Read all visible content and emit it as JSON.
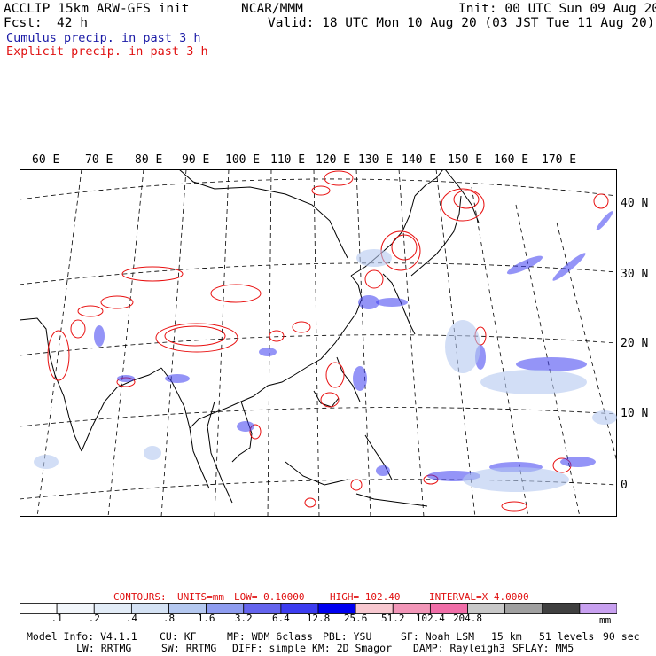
{
  "header": {
    "model": "ACCLIP 15km ARW-GFS init",
    "org": "NCAR/MMM",
    "init": "Init: 00 UTC Sun 09 Aug 20",
    "fcst_label": "Fcst:",
    "fcst_value": "42 h",
    "valid": "Valid: 18 UTC Mon 10 Aug 20 (03 JST Tue 11 Aug 20)",
    "cumulus": "Cumulus precip. in past 3 h",
    "explicit": "Explicit precip. in past 3 h"
  },
  "map": {
    "lon_labels": [
      "60 E",
      "70 E",
      "80 E",
      "90 E",
      "100 E",
      "110 E",
      "120 E",
      "130 E",
      "140 E",
      "150 E",
      "160 E",
      "170 E"
    ],
    "lat_labels": [
      "40 N",
      "30 N",
      "20 N",
      "10 N",
      "0"
    ],
    "colors": {
      "coast": "#000000",
      "grid": "#000000",
      "explicit": "#e81010",
      "cumulus": "#2020e0"
    }
  },
  "contours": {
    "label": "CONTOURS:",
    "units": "UNITS=mm",
    "low": "LOW= 0.10000",
    "high": "HIGH= 102.40",
    "interval": "INTERVAL=X 4.0000"
  },
  "colorbar": {
    "colors": [
      "#ffffff",
      "#f2f6fb",
      "#e2ecf7",
      "#d4e2f4",
      "#b4c8f0",
      "#8e9cf0",
      "#6464ee",
      "#3c3cf0",
      "#0000f0",
      "#f8c8d0",
      "#f296b8",
      "#f06ea8",
      "#c8c8c8",
      "#a0a0a0",
      "#404040",
      "#c8a0f0"
    ],
    "ticks": [
      ".1",
      ".2",
      ".4",
      ".8",
      "1.6",
      "3.2",
      "6.4",
      "12.8",
      "25.6",
      "51.2",
      "102.4",
      "204.8"
    ],
    "unit": "mm"
  },
  "footer": {
    "line1": [
      "Model Info: V4.1.1",
      "CU: KF",
      "MP: WDM 6class",
      "PBL: YSU",
      "SF: Noah LSM",
      "15 km",
      "51 levels",
      "90 sec"
    ],
    "line2": [
      "LW: RRTMG",
      "SW: RRTMG",
      "DIFF: simple",
      "KM: 2D Smagor",
      "DAMP: Rayleigh3",
      "SFLAY: MM5"
    ]
  }
}
